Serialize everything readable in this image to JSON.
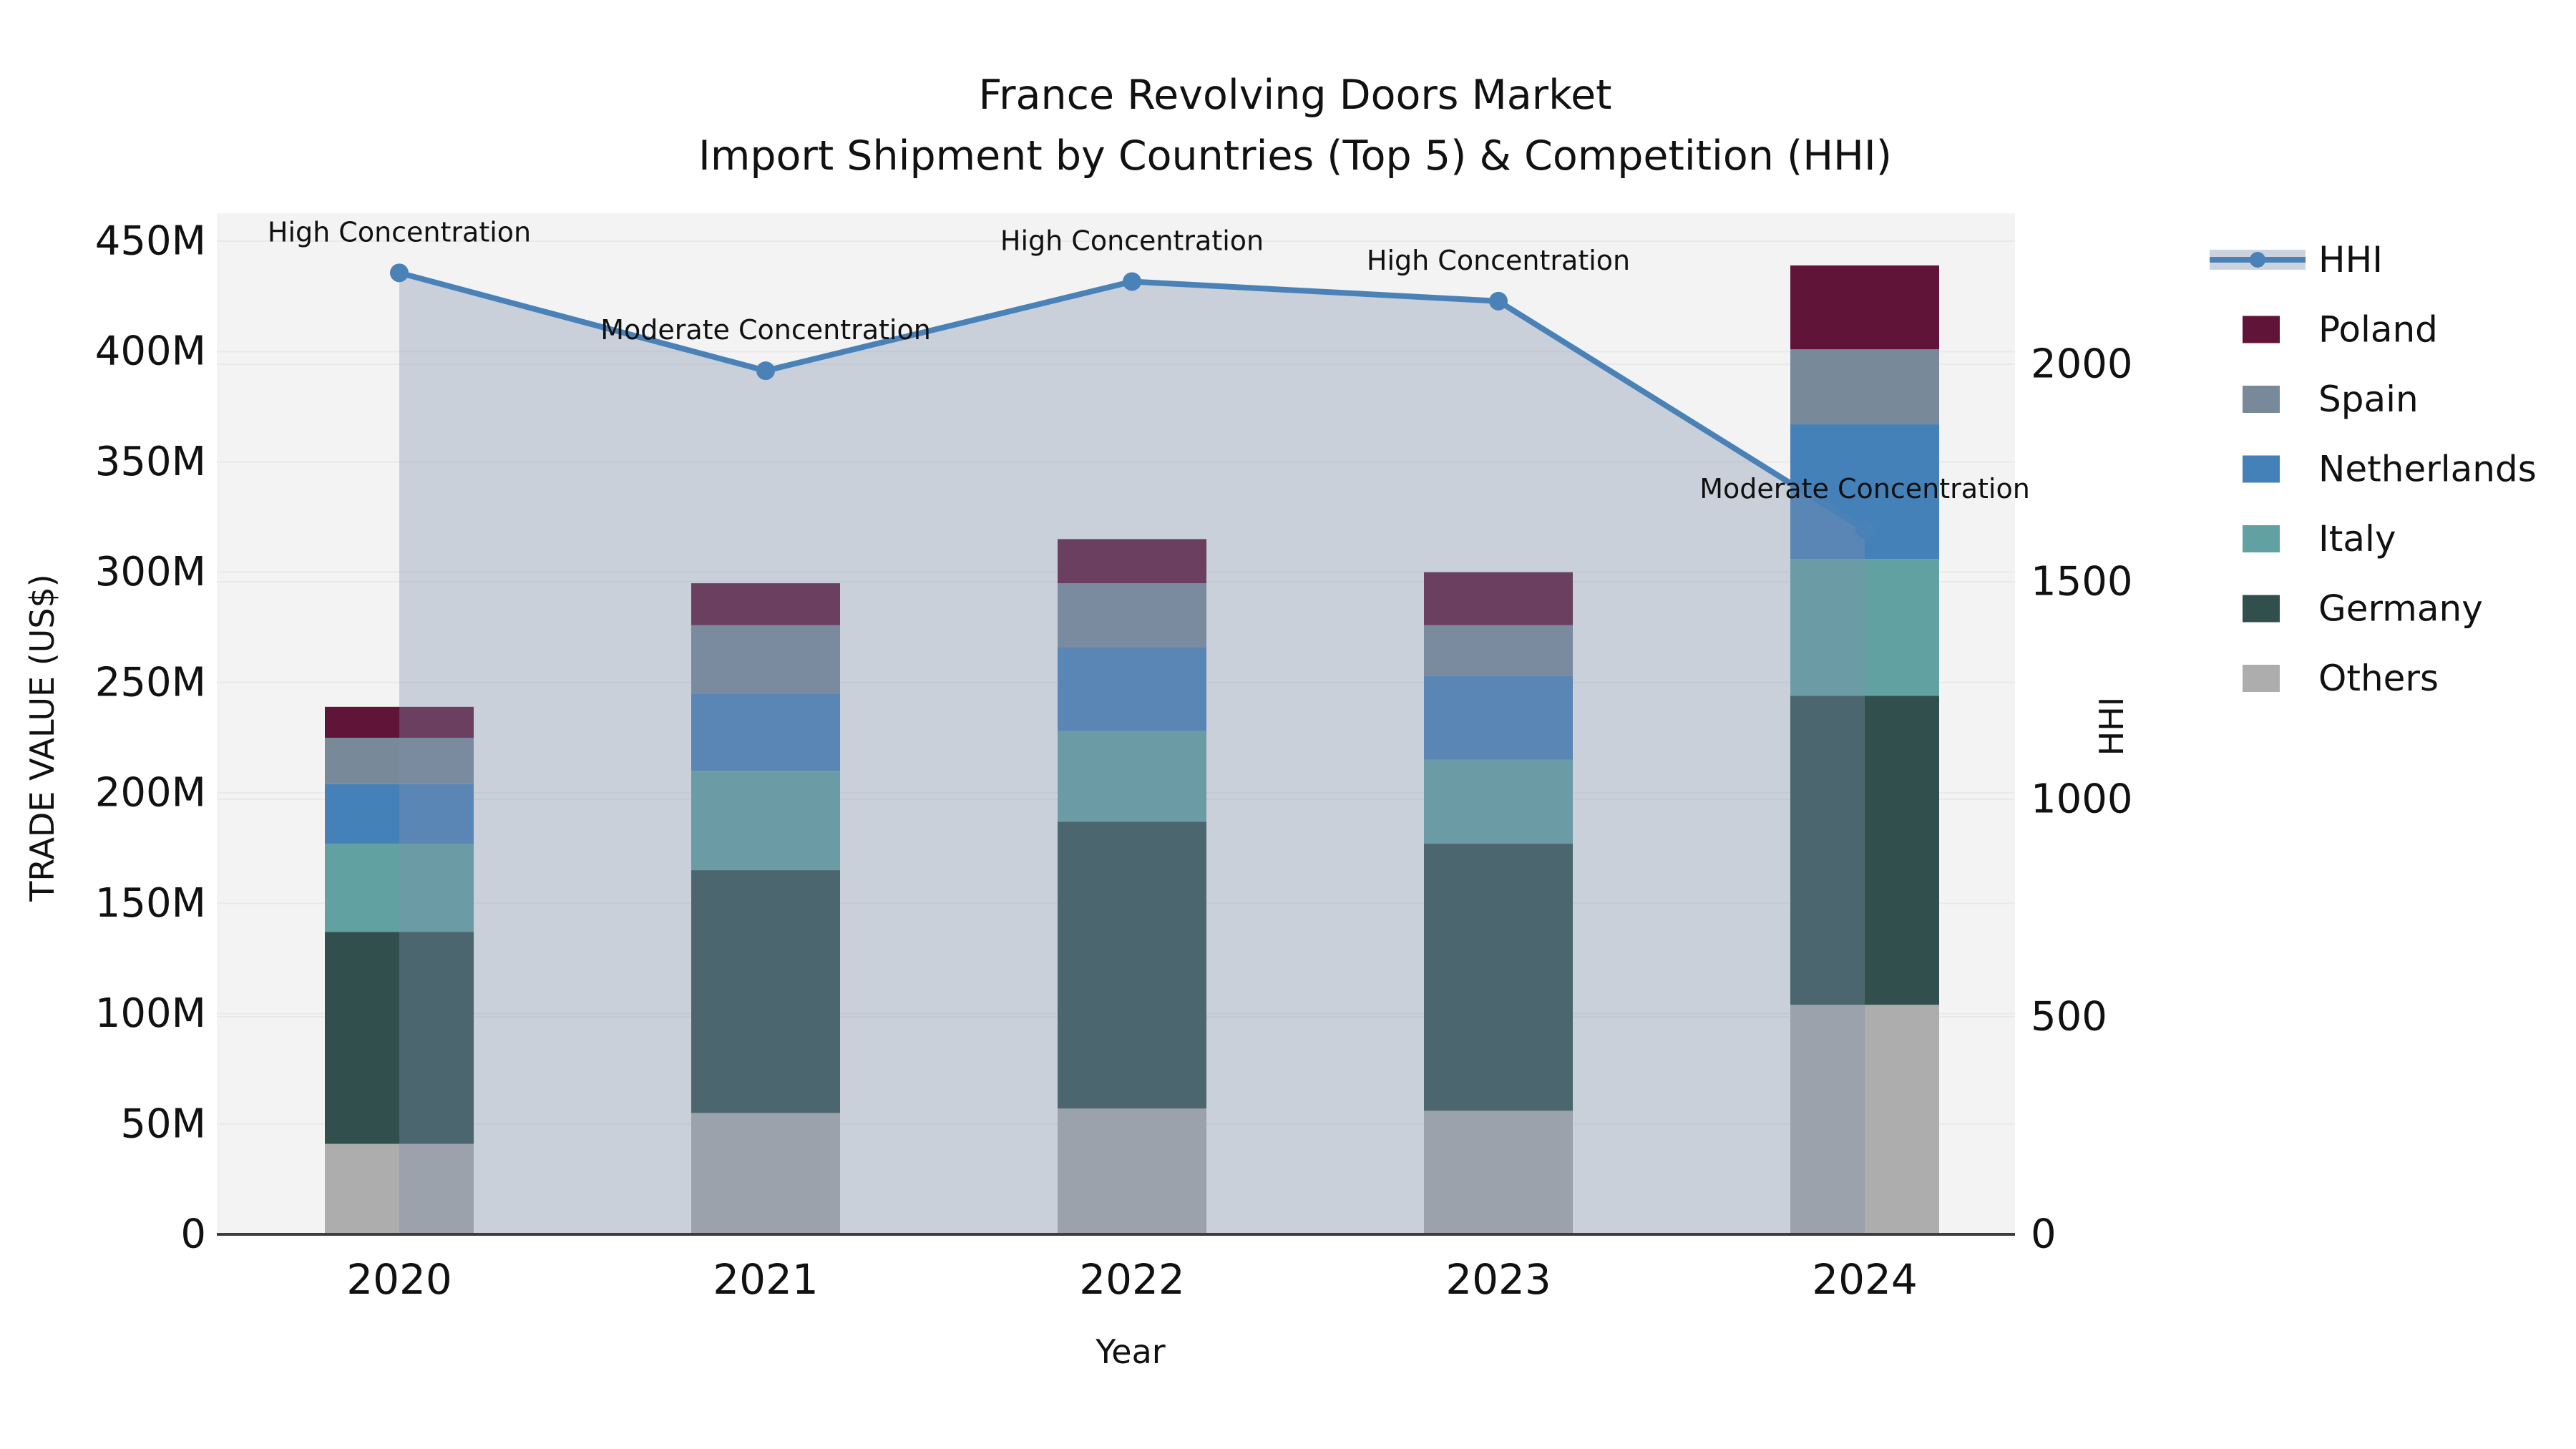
{
  "title": {
    "line1": "France Revolving Doors Market",
    "line2": "Import Shipment by Countries (Top 5) & Competition (HHI)"
  },
  "axes": {
    "left": {
      "label": "TRADE VALUE (US$)",
      "ticks": [
        "0",
        "50M",
        "100M",
        "150M",
        "200M",
        "250M",
        "300M",
        "350M",
        "400M",
        "450M"
      ],
      "tick_values_m": [
        0,
        50,
        100,
        150,
        200,
        250,
        300,
        350,
        400,
        450
      ]
    },
    "right": {
      "label": "HHI",
      "ticks": [
        "0",
        "500",
        "1000",
        "1500",
        "2000"
      ],
      "tick_values": [
        0,
        500,
        1000,
        1500,
        2000
      ]
    },
    "x": {
      "label": "Year"
    }
  },
  "legend": {
    "items": [
      {
        "label": "HHI",
        "type": "line",
        "color": "#4a82b8"
      },
      {
        "label": "Poland",
        "type": "swatch",
        "color": "#601437"
      },
      {
        "label": "Spain",
        "type": "swatch",
        "color": "#78899a"
      },
      {
        "label": "Netherlands",
        "type": "swatch",
        "color": "#4581b9"
      },
      {
        "label": "Italy",
        "type": "swatch",
        "color": "#61a1a2"
      },
      {
        "label": "Germany",
        "type": "swatch",
        "color": "#31504d"
      },
      {
        "label": "Others",
        "type": "swatch",
        "color": "#adadad"
      }
    ]
  },
  "chart_data": {
    "type": "bar",
    "subtype": "stacked-bars-with-line-area-dual-axis",
    "title": "France Revolving Doors Market — Import Shipment by Countries (Top 5) & Competition (HHI)",
    "xlabel": "Year",
    "ylabel_left": "TRADE VALUE (US$)",
    "ylabel_right": "HHI",
    "categories": [
      "2020",
      "2021",
      "2022",
      "2023",
      "2024"
    ],
    "unit": "US$ millions",
    "ylim_left_millions": [
      0,
      462
    ],
    "ylim_right_hhi": [
      0,
      2350
    ],
    "grid": true,
    "legend_position": "right",
    "series": [
      {
        "name": "Others",
        "axis": "left",
        "stack_order": 1,
        "color": "#adadad",
        "values_m": [
          41,
          55,
          57,
          56,
          104
        ]
      },
      {
        "name": "Germany",
        "axis": "left",
        "stack_order": 2,
        "color": "#31504d",
        "values_m": [
          96,
          110,
          130,
          121,
          140
        ]
      },
      {
        "name": "Italy",
        "axis": "left",
        "stack_order": 3,
        "color": "#61a1a2",
        "values_m": [
          40,
          45,
          41,
          38,
          62
        ]
      },
      {
        "name": "Netherlands",
        "axis": "left",
        "stack_order": 4,
        "color": "#4581b9",
        "values_m": [
          27,
          35,
          38,
          38,
          61
        ]
      },
      {
        "name": "Spain",
        "axis": "left",
        "stack_order": 5,
        "color": "#78899a",
        "values_m": [
          21,
          31,
          29,
          23,
          34
        ]
      },
      {
        "name": "Poland",
        "axis": "left",
        "stack_order": 6,
        "color": "#601437",
        "values_m": [
          14,
          19,
          20,
          24,
          38
        ]
      }
    ],
    "stack_totals_m": [
      239,
      295,
      315,
      300,
      439
    ],
    "line_series": {
      "name": "HHI",
      "axis": "right",
      "color": "#4a82b8",
      "area_fill": "rgba(126,143,172,0.35)",
      "values": [
        2210,
        1985,
        2190,
        2145,
        1620
      ]
    },
    "annotations": [
      {
        "category": "2020",
        "text": "High Concentration"
      },
      {
        "category": "2021",
        "text": "Moderate Concentration"
      },
      {
        "category": "2022",
        "text": "High Concentration"
      },
      {
        "category": "2023",
        "text": "High Concentration"
      },
      {
        "category": "2024",
        "text": "Moderate Concentration"
      }
    ],
    "colors": {
      "plot_background": "#f3f3f3",
      "page_background": "#ffffff",
      "gridline": "#e9e9e9",
      "axis_spine": "#3d3d3d",
      "text": "#111111",
      "legend_hhi_band": "#ccd3de"
    }
  }
}
